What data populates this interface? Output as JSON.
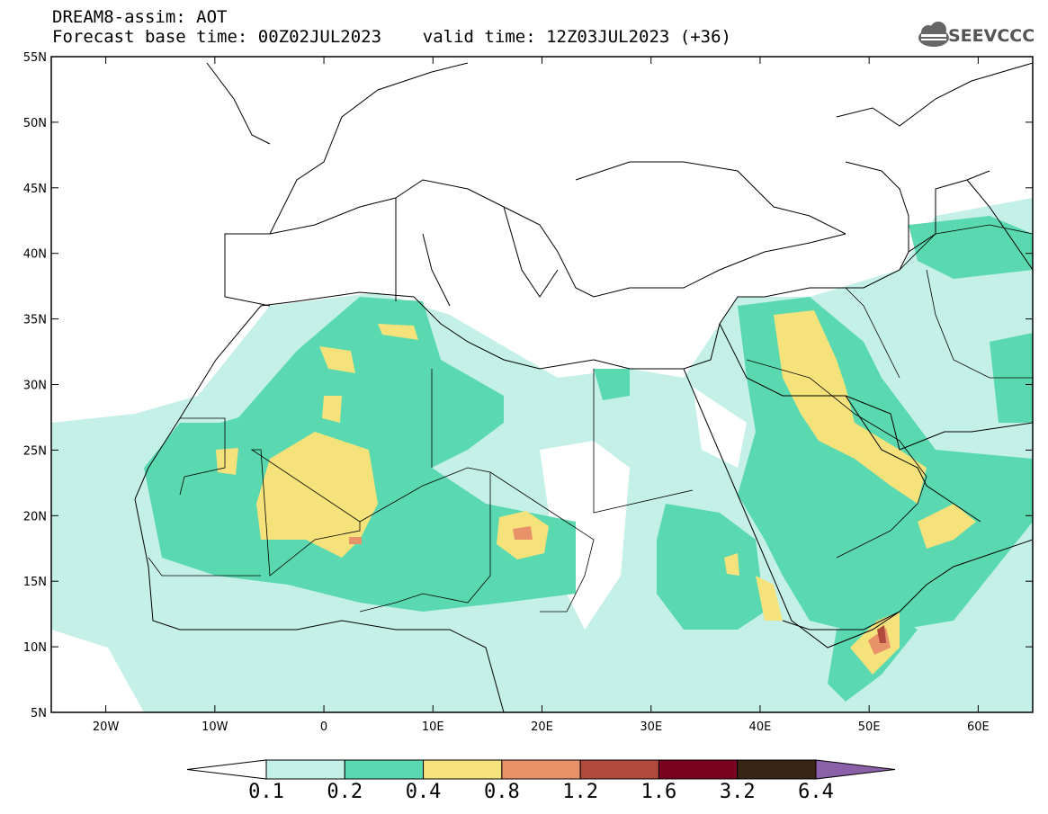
{
  "header": {
    "title_line1": "DREAM8-assim: AOT",
    "title_line2": "Forecast base time: 00Z02JUL2023    valid time: 12Z03JUL2023 (+36)",
    "logo_text": "SEEVCCC"
  },
  "map": {
    "region": "North Africa / Middle East / Europe",
    "lon_range": [
      -25,
      65
    ],
    "lat_range": [
      5,
      55
    ],
    "lat_labels": [
      "55N",
      "50N",
      "45N",
      "40N",
      "35N",
      "30N",
      "25N",
      "20N",
      "15N",
      "10N",
      "5N"
    ],
    "lon_labels": [
      "20W",
      "10W",
      "0",
      "10E",
      "20E",
      "30E",
      "40E",
      "50E",
      "60E"
    ],
    "variable": "AOT"
  },
  "colorbar": {
    "labels": [
      "0.1",
      "0.2",
      "0.4",
      "0.8",
      "1.2",
      "1.6",
      "3.2",
      "6.4"
    ],
    "colors": [
      "#ffffff",
      "#c4f0e8",
      "#5ad9b0",
      "#f5e27a",
      "#e8926a",
      "#b04a3c",
      "#7a0020",
      "#3a2414",
      "#8a60a8"
    ]
  }
}
